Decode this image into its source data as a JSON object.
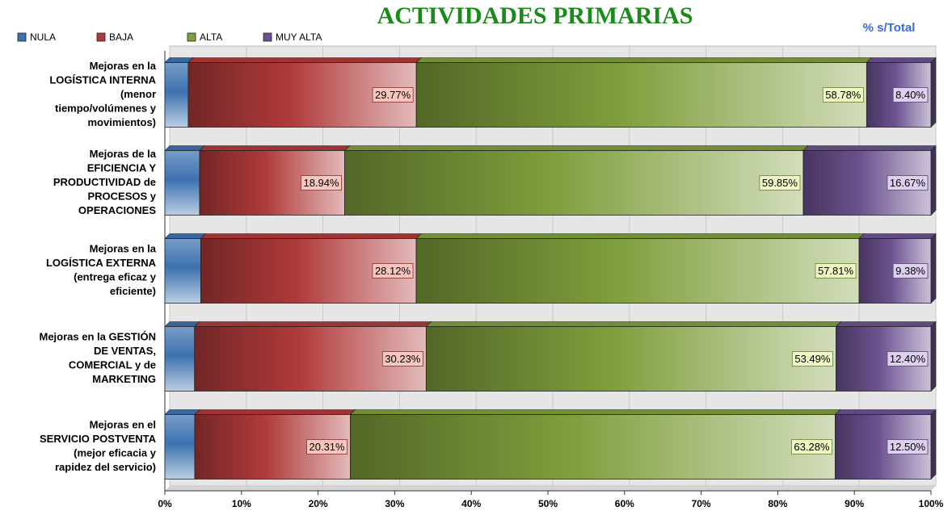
{
  "chart_data": {
    "type": "stacked_barh",
    "title": "ACTIVIDADES PRIMARIAS",
    "subtitle": "% s/Total",
    "categories": [
      [
        "Mejoras en la",
        "LOGÍSTICA INTERNA",
        "(menor",
        "tiempo/volúmenes y",
        "movimientos)"
      ],
      [
        "Mejoras de la",
        "EFICIENCIA Y",
        "PRODUCTIVIDAD de",
        "PROCESOS y",
        "OPERACIONES"
      ],
      [
        "Mejoras en la",
        "LOGÍSTICA EXTERNA",
        "(entrega eficaz y",
        "eficiente)"
      ],
      [
        "Mejoras en la GESTIÓN",
        "DE VENTAS,",
        "COMERCIAL y de",
        "MARKETING"
      ],
      [
        "Mejoras en el",
        "SERVICIO POSTVENTA",
        "(mejor eficacia y",
        "rapidez del servicio)"
      ]
    ],
    "series": [
      {
        "name": "NULA",
        "color": "#3d72b0",
        "values": [
          3.05,
          4.54,
          4.69,
          3.88,
          3.91
        ]
      },
      {
        "name": "BAJA",
        "color": "#b03a3a",
        "values": [
          29.77,
          18.94,
          28.12,
          30.23,
          20.31
        ],
        "value_labels": [
          "29.77%",
          "18.94%",
          "28.12%",
          "30.23%",
          "20.31%"
        ],
        "label_fill": "#f6c6bf"
      },
      {
        "name": "ALTA",
        "color": "#7f9e3c",
        "values": [
          58.78,
          59.85,
          57.81,
          53.49,
          63.28
        ],
        "value_labels": [
          "58.78%",
          "59.85%",
          "57.81%",
          "53.49%",
          "63.28%"
        ],
        "label_fill": "#eef7c4"
      },
      {
        "name": "MUY ALTA",
        "color": "#6c5290",
        "values": [
          8.4,
          16.67,
          9.38,
          12.4,
          12.5
        ],
        "value_labels": [
          "8.40%",
          "16.67%",
          "9.38%",
          "12.40%",
          "12.50%"
        ],
        "label_fill": "#ddd0ef"
      }
    ],
    "xlim": [
      0,
      100
    ],
    "xticks": [
      {
        "value": 0,
        "label": "0%"
      },
      {
        "value": 10,
        "label": "10%"
      },
      {
        "value": 20,
        "label": "20%"
      },
      {
        "value": 30,
        "label": "30%"
      },
      {
        "value": 40,
        "label": "40%"
      },
      {
        "value": 50,
        "label": "50%"
      },
      {
        "value": 60,
        "label": "60%"
      },
      {
        "value": 70,
        "label": "70%"
      },
      {
        "value": 80,
        "label": "80%"
      },
      {
        "value": 90,
        "label": "90%"
      },
      {
        "value": 100,
        "label": "100%"
      }
    ],
    "grid": true,
    "legend": "top-left"
  }
}
